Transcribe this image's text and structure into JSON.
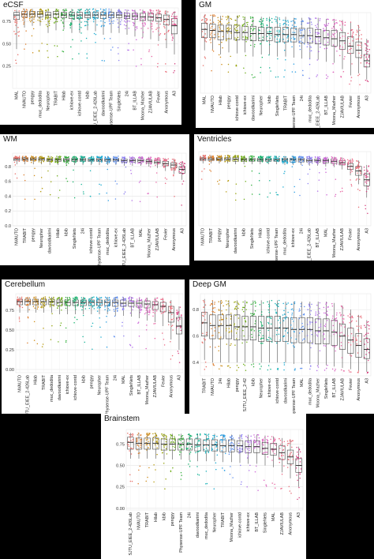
{
  "chart_data": [
    {
      "type": "box",
      "title": "eCSF",
      "ylim": [
        0.0,
        0.9
      ],
      "yticks": [
        "0.25",
        "0.50",
        "0.75"
      ],
      "ytick_values": [
        0.25,
        0.5,
        0.75
      ],
      "categories": [
        "MAL",
        "NVAUTO",
        "pengyy",
        "muc_dedodita",
        "Neuropher",
        "TRABIT",
        "Hilab",
        "ichiove-ex",
        "ichiove-contd",
        "kbib",
        "SJTU_EIEE_2-426Lab",
        "davoodkarimi",
        "Physense-UPF Team",
        "SingleNets",
        "24i",
        "BT_ILLAB",
        "Moona_Mazher",
        "ZJAVIULAB",
        "Fevier",
        "Anonymous",
        "A3"
      ],
      "medians": [
        0.82,
        0.83,
        0.83,
        0.83,
        0.82,
        0.83,
        0.82,
        0.82,
        0.82,
        0.82,
        0.82,
        0.82,
        0.82,
        0.82,
        0.81,
        0.81,
        0.8,
        0.8,
        0.79,
        0.77,
        0.7
      ],
      "q1": [
        0.77,
        0.8,
        0.8,
        0.8,
        0.79,
        0.79,
        0.79,
        0.78,
        0.78,
        0.79,
        0.79,
        0.78,
        0.79,
        0.79,
        0.78,
        0.77,
        0.76,
        0.76,
        0.75,
        0.71,
        0.61
      ],
      "q3": [
        0.85,
        0.86,
        0.86,
        0.86,
        0.85,
        0.86,
        0.85,
        0.85,
        0.85,
        0.85,
        0.85,
        0.85,
        0.85,
        0.85,
        0.84,
        0.84,
        0.84,
        0.84,
        0.83,
        0.82,
        0.78
      ],
      "whisker_low": [
        0.44,
        0.68,
        0.7,
        0.7,
        0.62,
        0.65,
        0.66,
        0.62,
        0.62,
        0.65,
        0.64,
        0.6,
        0.62,
        0.62,
        0.6,
        0.58,
        0.57,
        0.55,
        0.53,
        0.45,
        0.38
      ],
      "whisker_high": [
        0.88,
        0.89,
        0.89,
        0.89,
        0.89,
        0.89,
        0.89,
        0.89,
        0.89,
        0.89,
        0.89,
        0.89,
        0.89,
        0.89,
        0.88,
        0.88,
        0.88,
        0.88,
        0.88,
        0.87,
        0.86
      ]
    },
    {
      "type": "box",
      "title": "GM",
      "ylim": [
        0.15,
        0.92
      ],
      "yticks": [],
      "ytick_values": [],
      "categories": [
        "MAL",
        "NVAUTO",
        "Hilab",
        "pengyy",
        "ichiove-contd",
        "ichiove-ex",
        "davoodkarimi",
        "Neuropher",
        "kbib",
        "SingleNets",
        "TRABIT",
        "Physense-UPF Team",
        "24i",
        "muc_dedodita",
        "SJTU_EIEE_2-426Lab",
        "BT_ILLAB",
        "Moona_Mazher",
        "ZJAVIULAB",
        "Fevier",
        "Anonymous",
        "A3"
      ],
      "medians": [
        0.76,
        0.75,
        0.74,
        0.74,
        0.73,
        0.73,
        0.72,
        0.72,
        0.72,
        0.71,
        0.71,
        0.71,
        0.7,
        0.7,
        0.69,
        0.68,
        0.67,
        0.65,
        0.6,
        0.56,
        0.46
      ],
      "q1": [
        0.68,
        0.68,
        0.66,
        0.67,
        0.66,
        0.66,
        0.65,
        0.65,
        0.65,
        0.64,
        0.64,
        0.64,
        0.63,
        0.63,
        0.62,
        0.61,
        0.6,
        0.57,
        0.53,
        0.49,
        0.4
      ],
      "q3": [
        0.82,
        0.81,
        0.8,
        0.8,
        0.8,
        0.79,
        0.79,
        0.78,
        0.78,
        0.78,
        0.78,
        0.77,
        0.77,
        0.77,
        0.76,
        0.75,
        0.75,
        0.73,
        0.69,
        0.64,
        0.52
      ],
      "whisker_low": [
        0.56,
        0.57,
        0.52,
        0.54,
        0.53,
        0.54,
        0.5,
        0.52,
        0.52,
        0.5,
        0.5,
        0.49,
        0.48,
        0.48,
        0.47,
        0.45,
        0.44,
        0.38,
        0.32,
        0.34,
        0.28
      ],
      "whisker_high": [
        0.9,
        0.9,
        0.89,
        0.89,
        0.89,
        0.88,
        0.88,
        0.88,
        0.88,
        0.88,
        0.88,
        0.87,
        0.87,
        0.87,
        0.87,
        0.86,
        0.86,
        0.85,
        0.83,
        0.8,
        0.67
      ]
    },
    {
      "type": "box",
      "title": "WM",
      "ylim": [
        0.0,
        0.98
      ],
      "yticks": [
        "0.0",
        "0.2",
        "0.4",
        "0.6",
        "0.8"
      ],
      "ytick_values": [
        0.0,
        0.2,
        0.4,
        0.6,
        0.8
      ],
      "categories": [
        "NVAUTO",
        "TRABIT",
        "pengyy",
        "Neuropher",
        "davoodkarimi",
        "Hilab",
        "kbib",
        "SingleNets",
        "24i",
        "ichiove-contd",
        "Physense-UPF Team",
        "muc_dedodita",
        "ichiove-ex",
        "SJTU_EIEE_2-426Lab",
        "BT_ILLAB",
        "MAL",
        "Moona_Mazher",
        "ZJAVIULAB",
        "Fevier",
        "Anonymous",
        "A3"
      ],
      "medians": [
        0.9,
        0.9,
        0.9,
        0.9,
        0.89,
        0.89,
        0.89,
        0.89,
        0.89,
        0.89,
        0.89,
        0.89,
        0.89,
        0.88,
        0.88,
        0.88,
        0.87,
        0.86,
        0.84,
        0.82,
        0.76
      ],
      "q1": [
        0.88,
        0.88,
        0.88,
        0.88,
        0.87,
        0.87,
        0.87,
        0.87,
        0.87,
        0.87,
        0.87,
        0.87,
        0.87,
        0.86,
        0.86,
        0.86,
        0.85,
        0.84,
        0.81,
        0.78,
        0.71
      ],
      "q3": [
        0.92,
        0.92,
        0.92,
        0.92,
        0.91,
        0.91,
        0.91,
        0.91,
        0.91,
        0.91,
        0.91,
        0.91,
        0.91,
        0.9,
        0.9,
        0.9,
        0.89,
        0.89,
        0.87,
        0.85,
        0.8
      ],
      "whisker_low": [
        0.83,
        0.83,
        0.83,
        0.83,
        0.82,
        0.82,
        0.82,
        0.82,
        0.82,
        0.82,
        0.82,
        0.82,
        0.82,
        0.81,
        0.81,
        0.81,
        0.8,
        0.78,
        0.74,
        0.7,
        0.62
      ],
      "whisker_high": [
        0.94,
        0.94,
        0.94,
        0.94,
        0.94,
        0.94,
        0.94,
        0.94,
        0.94,
        0.94,
        0.94,
        0.94,
        0.94,
        0.93,
        0.93,
        0.93,
        0.93,
        0.92,
        0.91,
        0.9,
        0.87
      ]
    },
    {
      "type": "box",
      "title": "Ventricles",
      "ylim": [
        0.0,
        1.0
      ],
      "yticks": [],
      "ytick_values": [],
      "categories": [
        "NVAUTO",
        "TRABIT",
        "pengyy",
        "Neuropher",
        "davoodkarimi",
        "kbib",
        "SingleNets",
        "Hilab",
        "ichiove-contd",
        "Physense-UPF Team",
        "muc_dedodita",
        "ichiove-ex",
        "24i",
        "SJTU_EIEE_2-426Lab",
        "BT_ILLAB",
        "MAL",
        "Moona_Mazher",
        "ZJAVIULAB",
        "Fevier",
        "Anonymous",
        "A3"
      ],
      "medians": [
        0.9,
        0.9,
        0.9,
        0.9,
        0.9,
        0.89,
        0.89,
        0.89,
        0.89,
        0.89,
        0.89,
        0.89,
        0.89,
        0.88,
        0.88,
        0.88,
        0.87,
        0.85,
        0.8,
        0.74,
        0.62
      ],
      "q1": [
        0.88,
        0.88,
        0.88,
        0.88,
        0.87,
        0.87,
        0.87,
        0.87,
        0.87,
        0.87,
        0.87,
        0.86,
        0.86,
        0.86,
        0.86,
        0.85,
        0.84,
        0.82,
        0.76,
        0.68,
        0.54
      ],
      "q3": [
        0.92,
        0.92,
        0.92,
        0.92,
        0.92,
        0.91,
        0.91,
        0.91,
        0.91,
        0.91,
        0.91,
        0.91,
        0.91,
        0.9,
        0.9,
        0.9,
        0.9,
        0.88,
        0.84,
        0.8,
        0.7
      ],
      "whisker_low": [
        0.84,
        0.84,
        0.84,
        0.84,
        0.83,
        0.83,
        0.83,
        0.83,
        0.83,
        0.83,
        0.82,
        0.82,
        0.82,
        0.81,
        0.81,
        0.8,
        0.79,
        0.76,
        0.68,
        0.56,
        0.38
      ],
      "whisker_high": [
        0.95,
        0.95,
        0.95,
        0.95,
        0.95,
        0.94,
        0.94,
        0.94,
        0.94,
        0.94,
        0.94,
        0.94,
        0.94,
        0.94,
        0.93,
        0.93,
        0.93,
        0.92,
        0.9,
        0.88,
        0.82
      ]
    },
    {
      "type": "box",
      "title": "Cerebellum",
      "ylim": [
        -0.04,
        0.96
      ],
      "yticks": [
        "0.00",
        "0.25",
        "0.50",
        "0.75"
      ],
      "ytick_values": [
        0.0,
        0.25,
        0.5,
        0.75
      ],
      "categories": [
        "NVAUTO",
        "SJTU_EIEE_2-426Lab",
        "Hilab",
        "TRABIT",
        "muc_dedodita",
        "davoodkarimi",
        "ichiove-ex",
        "ichiove-contd",
        "kbib",
        "pengyy",
        "Neuropher",
        "Physense-UPF Team",
        "24i",
        "MAL",
        "SingleNets",
        "BT_ILLAB",
        "Moona_Mazher",
        "ZJAVIULAB",
        "Fevier",
        "Anonymous",
        "A3"
      ],
      "medians": [
        0.86,
        0.86,
        0.86,
        0.86,
        0.86,
        0.85,
        0.85,
        0.85,
        0.85,
        0.85,
        0.85,
        0.85,
        0.85,
        0.84,
        0.84,
        0.84,
        0.83,
        0.82,
        0.8,
        0.72,
        0.55
      ],
      "q1": [
        0.82,
        0.82,
        0.82,
        0.82,
        0.82,
        0.81,
        0.81,
        0.81,
        0.81,
        0.81,
        0.81,
        0.81,
        0.8,
        0.8,
        0.8,
        0.79,
        0.78,
        0.76,
        0.73,
        0.6,
        0.45
      ],
      "q3": [
        0.89,
        0.89,
        0.89,
        0.89,
        0.89,
        0.88,
        0.88,
        0.88,
        0.88,
        0.88,
        0.88,
        0.88,
        0.88,
        0.88,
        0.87,
        0.87,
        0.87,
        0.86,
        0.85,
        0.8,
        0.66
      ],
      "whisker_low": [
        0.72,
        0.72,
        0.72,
        0.72,
        0.72,
        0.7,
        0.7,
        0.7,
        0.7,
        0.7,
        0.7,
        0.7,
        0.68,
        0.68,
        0.67,
        0.65,
        0.62,
        0.6,
        0.55,
        0.38,
        0.25
      ],
      "whisker_high": [
        0.92,
        0.92,
        0.92,
        0.92,
        0.92,
        0.92,
        0.92,
        0.92,
        0.92,
        0.92,
        0.92,
        0.92,
        0.92,
        0.92,
        0.92,
        0.91,
        0.91,
        0.91,
        0.9,
        0.88,
        0.8
      ]
    },
    {
      "type": "box",
      "title": "Deep GM",
      "ylim": [
        0.3,
        0.92
      ],
      "yticks": [
        "0.4",
        "0.6",
        "0.8"
      ],
      "ytick_values": [
        0.4,
        0.6,
        0.8
      ],
      "categories": [
        "TRABIT",
        "NVAUTO",
        "24i",
        "Hilab",
        "pengyy",
        "SJTU_EIEE_2-42",
        "kbib",
        "Neuropher",
        "ichiove-ex",
        "ichiove-contd",
        "davoodkarimi",
        "Physense-UPF Team",
        "MAL",
        "muc_dedodita",
        "Moona_Mazher",
        "SingleNets",
        "BT_ILLAB",
        "ZJAVIULAB",
        "Fevier",
        "Anonymous",
        "A3"
      ],
      "medians": [
        0.7,
        0.68,
        0.68,
        0.68,
        0.67,
        0.67,
        0.67,
        0.66,
        0.66,
        0.66,
        0.66,
        0.65,
        0.65,
        0.65,
        0.64,
        0.64,
        0.63,
        0.6,
        0.57,
        0.53,
        0.5
      ],
      "q1": [
        0.6,
        0.58,
        0.58,
        0.58,
        0.57,
        0.57,
        0.57,
        0.56,
        0.56,
        0.56,
        0.56,
        0.55,
        0.55,
        0.55,
        0.54,
        0.54,
        0.53,
        0.5,
        0.47,
        0.44,
        0.43
      ],
      "q3": [
        0.78,
        0.76,
        0.76,
        0.76,
        0.76,
        0.75,
        0.75,
        0.75,
        0.75,
        0.75,
        0.74,
        0.74,
        0.74,
        0.74,
        0.73,
        0.73,
        0.72,
        0.69,
        0.66,
        0.62,
        0.58
      ],
      "whisker_low": [
        0.42,
        0.4,
        0.4,
        0.4,
        0.4,
        0.4,
        0.4,
        0.4,
        0.4,
        0.4,
        0.4,
        0.39,
        0.39,
        0.39,
        0.38,
        0.38,
        0.37,
        0.36,
        0.35,
        0.34,
        0.33
      ],
      "whisker_high": [
        0.88,
        0.87,
        0.87,
        0.87,
        0.87,
        0.87,
        0.87,
        0.87,
        0.87,
        0.87,
        0.86,
        0.86,
        0.86,
        0.86,
        0.86,
        0.86,
        0.85,
        0.83,
        0.8,
        0.76,
        0.72
      ]
    },
    {
      "type": "box",
      "title": "Brainstem",
      "ylim": [
        -0.02,
        0.92
      ],
      "yticks": [
        "0.00",
        "0.25",
        "0.50",
        "0.75"
      ],
      "ytick_values": [
        0.0,
        0.25,
        0.5,
        0.75
      ],
      "categories": [
        "SJTU_EIEE_2-426Lab",
        "NVAUTO",
        "TRABIT",
        "Hilab",
        "kbib",
        "pengyy",
        "Physense-UPF Team",
        "24i",
        "davoodkarimi",
        "muc_dedodita",
        "Neuropher",
        "TRABIT",
        "Moona_Mazher",
        "ichiove-contd",
        "ichiove-ex",
        "BT_ILLAB",
        "SingleNets",
        "MAL",
        "ZJAVIULAB",
        "Anonymous",
        "A3"
      ],
      "medians": [
        0.77,
        0.76,
        0.76,
        0.76,
        0.75,
        0.75,
        0.75,
        0.75,
        0.74,
        0.74,
        0.74,
        0.73,
        0.73,
        0.73,
        0.72,
        0.72,
        0.7,
        0.69,
        0.65,
        0.6,
        0.5
      ],
      "q1": [
        0.69,
        0.69,
        0.69,
        0.69,
        0.68,
        0.68,
        0.68,
        0.68,
        0.67,
        0.67,
        0.67,
        0.66,
        0.66,
        0.66,
        0.65,
        0.65,
        0.63,
        0.62,
        0.57,
        0.52,
        0.42
      ],
      "q3": [
        0.83,
        0.82,
        0.82,
        0.82,
        0.81,
        0.81,
        0.81,
        0.81,
        0.81,
        0.8,
        0.8,
        0.8,
        0.8,
        0.79,
        0.79,
        0.79,
        0.77,
        0.76,
        0.73,
        0.68,
        0.58
      ],
      "whisker_low": [
        0.58,
        0.58,
        0.58,
        0.58,
        0.57,
        0.57,
        0.57,
        0.56,
        0.55,
        0.55,
        0.55,
        0.54,
        0.54,
        0.53,
        0.52,
        0.52,
        0.5,
        0.48,
        0.42,
        0.35,
        0.25
      ],
      "whisker_high": [
        0.88,
        0.88,
        0.88,
        0.88,
        0.87,
        0.87,
        0.87,
        0.87,
        0.87,
        0.87,
        0.87,
        0.86,
        0.86,
        0.86,
        0.86,
        0.86,
        0.85,
        0.84,
        0.82,
        0.8,
        0.72
      ]
    }
  ],
  "palette": [
    "#e8716b",
    "#de7f2f",
    "#cf8c18",
    "#b79b10",
    "#99a50f",
    "#6fae1a",
    "#34b13d",
    "#14b36c",
    "#16b497",
    "#19b2b9",
    "#1aabd2",
    "#2a9ee3",
    "#5e8ff0",
    "#8d7ff1",
    "#b170ea",
    "#cd66d8",
    "#de62bf",
    "#e865a2",
    "#ec6a87",
    "#ea6d78",
    "#d6417f"
  ]
}
